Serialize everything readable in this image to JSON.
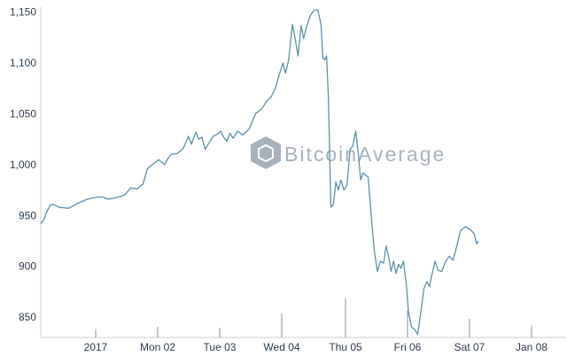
{
  "watermark": {
    "text": "BitcoinAverage",
    "color": "#9aa5b1"
  },
  "chart_data": {
    "type": "line",
    "y_ticks": [
      850,
      900,
      950,
      1000,
      1050,
      1100,
      1150
    ],
    "y_tick_labels": [
      "850",
      "900",
      "950",
      "1,000",
      "1,050",
      "1,100",
      "1,150"
    ],
    "ylim": [
      830,
      1155
    ],
    "x_ticks": [
      "2017",
      "Mon 02",
      "Tue 03",
      "Wed 04",
      "Thu 05",
      "Fri 06",
      "Sat 07",
      "Jan 08"
    ],
    "line_color": "#5b8fb0",
    "grid": false,
    "series": [
      {
        "values": [
          [
            0.0,
            942
          ],
          [
            0.05,
            946
          ],
          [
            0.1,
            954
          ],
          [
            0.15,
            960
          ],
          [
            0.2,
            961
          ],
          [
            0.3,
            958
          ],
          [
            0.45,
            957
          ],
          [
            0.6,
            962
          ],
          [
            0.75,
            966
          ],
          [
            0.9,
            968
          ],
          [
            1.0,
            968
          ],
          [
            1.1,
            966
          ],
          [
            1.25,
            968
          ],
          [
            1.35,
            970
          ],
          [
            1.45,
            977
          ],
          [
            1.55,
            976
          ],
          [
            1.65,
            981
          ],
          [
            1.72,
            996
          ],
          [
            1.8,
            1000
          ],
          [
            1.9,
            1005
          ],
          [
            2.0,
            1000
          ],
          [
            2.05,
            1006
          ],
          [
            2.1,
            1010
          ],
          [
            2.2,
            1011
          ],
          [
            2.3,
            1016
          ],
          [
            2.38,
            1028
          ],
          [
            2.43,
            1020
          ],
          [
            2.5,
            1032
          ],
          [
            2.55,
            1025
          ],
          [
            2.6,
            1027
          ],
          [
            2.65,
            1015
          ],
          [
            2.7,
            1020
          ],
          [
            2.78,
            1028
          ],
          [
            2.85,
            1030
          ],
          [
            2.9,
            1033
          ],
          [
            2.95,
            1027
          ],
          [
            3.0,
            1023
          ],
          [
            3.05,
            1031
          ],
          [
            3.1,
            1026
          ],
          [
            3.17,
            1033
          ],
          [
            3.25,
            1029
          ],
          [
            3.35,
            1035
          ],
          [
            3.45,
            1050
          ],
          [
            3.55,
            1055
          ],
          [
            3.62,
            1062
          ],
          [
            3.7,
            1067
          ],
          [
            3.76,
            1075
          ],
          [
            3.82,
            1088
          ],
          [
            3.88,
            1100
          ],
          [
            3.92,
            1090
          ],
          [
            3.97,
            1103
          ],
          [
            4.03,
            1138
          ],
          [
            4.07,
            1125
          ],
          [
            4.12,
            1107
          ],
          [
            4.17,
            1137
          ],
          [
            4.21,
            1124
          ],
          [
            4.26,
            1136
          ],
          [
            4.32,
            1147
          ],
          [
            4.38,
            1152
          ],
          [
            4.44,
            1152
          ],
          [
            4.49,
            1138
          ],
          [
            4.52,
            1105
          ],
          [
            4.55,
            1103
          ],
          [
            4.58,
            1107
          ],
          [
            4.61,
            1065
          ],
          [
            4.65,
            958
          ],
          [
            4.69,
            961
          ],
          [
            4.73,
            983
          ],
          [
            4.77,
            975
          ],
          [
            4.81,
            985
          ],
          [
            4.86,
            975
          ],
          [
            4.91,
            980
          ],
          [
            4.96,
            1015
          ],
          [
            5.0,
            1018
          ],
          [
            5.05,
            1033
          ],
          [
            5.09,
            1012
          ],
          [
            5.13,
            985
          ],
          [
            5.17,
            992
          ],
          [
            5.2,
            990
          ],
          [
            5.25,
            988
          ],
          [
            5.3,
            950
          ],
          [
            5.35,
            915
          ],
          [
            5.4,
            895
          ],
          [
            5.45,
            905
          ],
          [
            5.5,
            903
          ],
          [
            5.54,
            920
          ],
          [
            5.58,
            910
          ],
          [
            5.62,
            895
          ],
          [
            5.66,
            905
          ],
          [
            5.7,
            893
          ],
          [
            5.74,
            902
          ],
          [
            5.78,
            898
          ],
          [
            5.82,
            905
          ],
          [
            5.87,
            880
          ],
          [
            5.9,
            855
          ],
          [
            5.95,
            840
          ],
          [
            6.0,
            838
          ],
          [
            6.05,
            833
          ],
          [
            6.1,
            855
          ],
          [
            6.15,
            878
          ],
          [
            6.2,
            885
          ],
          [
            6.24,
            880
          ],
          [
            6.28,
            892
          ],
          [
            6.33,
            905
          ],
          [
            6.38,
            896
          ],
          [
            6.44,
            895
          ],
          [
            6.5,
            905
          ],
          [
            6.56,
            910
          ],
          [
            6.62,
            906
          ],
          [
            6.68,
            920
          ],
          [
            6.74,
            935
          ],
          [
            6.82,
            939
          ],
          [
            6.9,
            936
          ],
          [
            6.96,
            932
          ],
          [
            7.0,
            922
          ],
          [
            7.03,
            925
          ]
        ]
      }
    ]
  }
}
